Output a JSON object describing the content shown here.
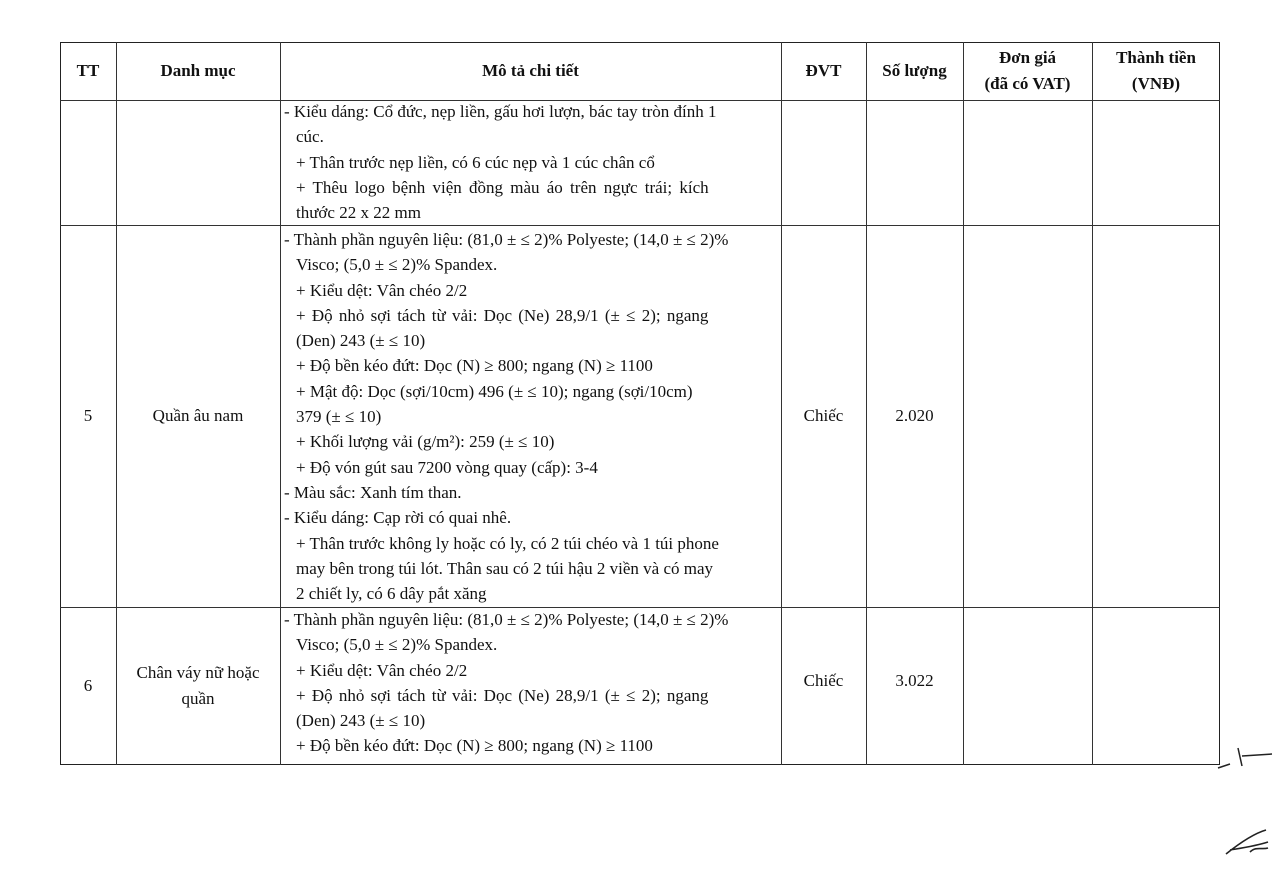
{
  "table": {
    "headers": {
      "tt": "TT",
      "danh_muc": "Danh mục",
      "mo_ta": "Mô tả chi tiết",
      "dvt": "ĐVT",
      "so_luong": "Số lượng",
      "don_gia_1": "Đơn giá",
      "don_gia_2": "(đã có VAT)",
      "thanh_tien_1": "Thành tiền",
      "thanh_tien_2": "(VNĐ)"
    },
    "rows": [
      {
        "tt": "",
        "danh_muc": "",
        "dvt": "",
        "so_luong": "",
        "lines": [
          "- Kiểu dáng: Cổ đức, nẹp liền, gấu hơi lượn, bác tay tròn đính 1",
          "cúc.",
          "+ Thân trước nẹp liền, có 6 cúc nẹp và 1 cúc chân cổ",
          "+ Thêu logo bệnh viện đồng màu áo trên ngực trái; kích",
          "thước 22 x 22 mm"
        ]
      },
      {
        "tt": "5",
        "danh_muc": "Quần âu nam",
        "dvt": "Chiếc",
        "so_luong": "2.020",
        "lines": [
          "- Thành phần nguyên liệu: (81,0 ± ≤ 2)% Polyeste; (14,0 ± ≤ 2)%",
          "Visco; (5,0 ± ≤ 2)% Spandex.",
          "+ Kiểu dệt: Vân chéo 2/2",
          "+ Độ nhỏ sợi tách từ vải: Dọc (Ne) 28,9/1 (± ≤ 2); ngang",
          "(Den) 243 (± ≤ 10)",
          "+ Độ bền kéo đứt: Dọc (N) ≥ 800; ngang (N) ≥ 1100",
          "+ Mật độ: Dọc (sợi/10cm) 496 (± ≤ 10); ngang (sợi/10cm)",
          "379 (± ≤ 10)",
          "+ Khối lượng vải (g/m²): 259 (± ≤ 10)",
          "+ Độ vón gút sau 7200 vòng quay (cấp): 3-4",
          "- Màu sắc: Xanh tím than.",
          "- Kiểu dáng: Cạp rời có quai nhê.",
          "+ Thân trước không ly hoặc có ly, có 2 túi chéo và 1 túi phone",
          "may bên trong túi lót. Thân sau có 2 túi hậu 2 viền và có may",
          "2 chiết ly, có 6 dây pắt xăng"
        ]
      },
      {
        "tt": "6",
        "danh_muc_1": "Chân váy nữ hoặc",
        "danh_muc_2": "quần",
        "dvt": "Chiếc",
        "so_luong": "3.022",
        "lines": [
          "- Thành phần nguyên liệu: (81,0 ± ≤ 2)% Polyeste; (14,0 ± ≤ 2)%",
          "Visco; (5,0 ± ≤ 2)% Spandex.",
          "+ Kiểu dệt: Vân chéo 2/2",
          "+ Độ nhỏ sợi tách từ vải: Dọc (Ne) 28,9/1 (± ≤ 2); ngang",
          "(Den) 243 (± ≤ 10)",
          "+ Độ bền kéo đứt: Dọc (N) ≥ 800; ngang (N) ≥ 1100"
        ]
      }
    ]
  }
}
